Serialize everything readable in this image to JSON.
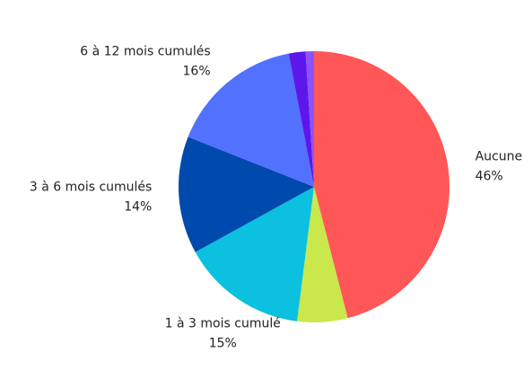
{
  "chart_data": {
    "type": "pie",
    "categories": [
      "Aucune",
      null,
      "1 à 3 mois cumulé",
      "3 à 6 mois cumulés",
      "6 à 12 mois cumulés",
      null,
      null
    ],
    "values": [
      46,
      6,
      15,
      14,
      16,
      2,
      1
    ],
    "value_labels": [
      "46%",
      null,
      "15%",
      "14%",
      "16%",
      null,
      null
    ],
    "colors": [
      "#ff5757",
      "#c9e84b",
      "#0cc0df",
      "#004aad",
      "#5271ff",
      "#5e17eb",
      "#8c52ff"
    ]
  }
}
